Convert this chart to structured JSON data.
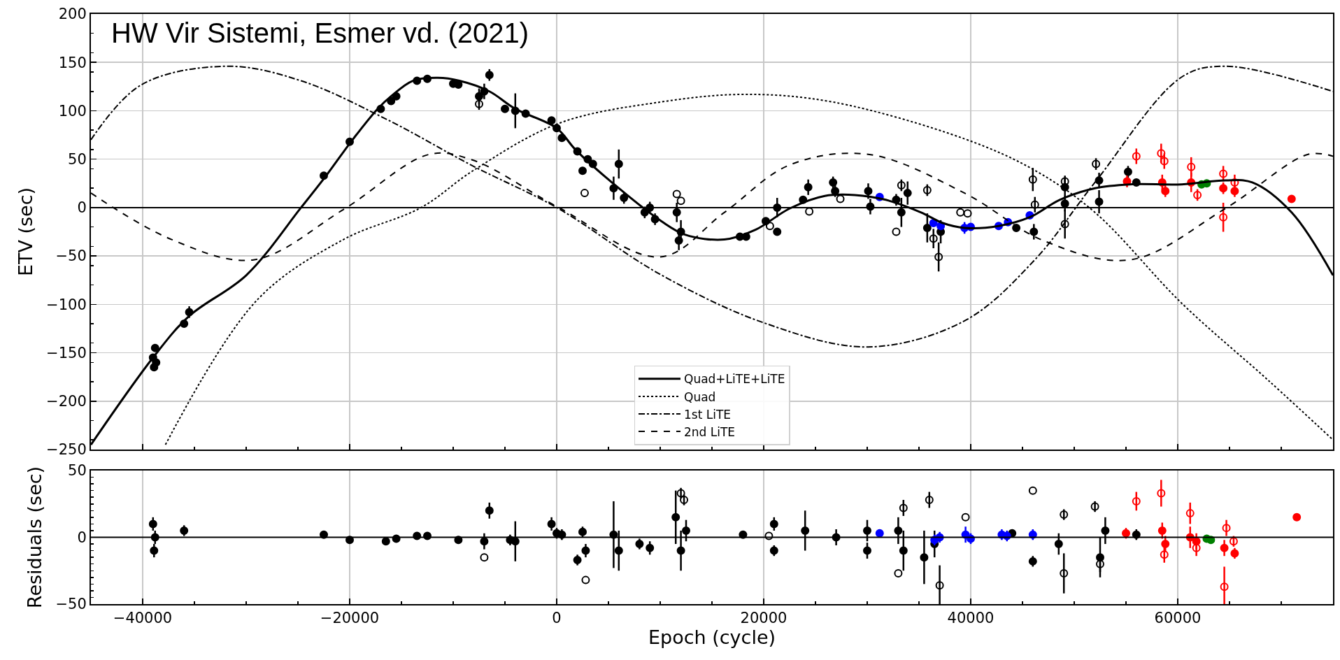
{
  "chart_data": [
    {
      "type": "scatter",
      "title": "HW Vir Sistemi, Esmer vd. (2021)",
      "ylabel": "ETV (sec)",
      "xlim": [
        -45000,
        75000
      ],
      "xticks": [
        -40000,
        -20000,
        0,
        20000,
        40000,
        60000
      ],
      "ylim": [
        -250,
        200
      ],
      "yticks": [
        -250,
        -200,
        -150,
        -100,
        -50,
        0,
        50,
        100,
        150,
        200
      ],
      "grid": true,
      "legend": "bottom",
      "tick_labels": "y",
      "marker": "circle",
      "ref_lines": [
        {
          "axis": "y",
          "value": 0,
          "color": "#000000"
        }
      ],
      "series": [
        {
          "color": "#000000",
          "x": [
            -39000,
            -38900,
            -38800,
            -38700,
            -36000,
            -35500,
            -22500,
            -20000,
            -17000,
            -16000,
            -15500,
            -13500,
            -12500,
            -10000,
            -9500,
            -7500,
            -7000,
            -6500,
            -5000,
            -4000,
            -3000,
            -500,
            0,
            500,
            2000,
            2500,
            3000,
            3500,
            5500,
            6000,
            6500,
            8500,
            9000,
            9500,
            11600,
            11800,
            12000,
            17700,
            18300,
            20200,
            21300,
            21300,
            23800,
            24300,
            26700,
            26900,
            30100,
            30300,
            32800,
            33300,
            33900,
            35800,
            37100,
            44400,
            46100,
            49100,
            49100,
            52400,
            52400,
            55200,
            56000
          ],
          "values": [
            -155,
            -165,
            -145,
            -160,
            -120,
            -108,
            33,
            68,
            102,
            110,
            115,
            131,
            133,
            128,
            127,
            115,
            120,
            137,
            102,
            100,
            97,
            90,
            82,
            72,
            58,
            38,
            50,
            45,
            20,
            45,
            10,
            -5,
            0,
            -12,
            -5,
            -34,
            -25,
            -30,
            -30,
            -14,
            -25,
            0,
            8,
            21,
            26,
            17,
            17,
            1,
            8,
            -5,
            15,
            -21,
            -25,
            -21,
            -25,
            4,
            21,
            28,
            6,
            37,
            26
          ],
          "errors": [
            null,
            null,
            null,
            null,
            null,
            6,
            null,
            null,
            null,
            null,
            null,
            null,
            null,
            null,
            null,
            8,
            8,
            6,
            null,
            18,
            null,
            null,
            null,
            null,
            null,
            null,
            null,
            null,
            12,
            15,
            6,
            6,
            6,
            6,
            10,
            10,
            12,
            null,
            null,
            null,
            null,
            10,
            null,
            8,
            6,
            6,
            8,
            8,
            6,
            15,
            12,
            15,
            12,
            null,
            8,
            8,
            10,
            8,
            12,
            6,
            null
          ]
        },
        {
          "color": "#000000",
          "marker": "circle-open",
          "x": [
            -7500,
            2700,
            11600,
            12000,
            20600,
            24400,
            27400,
            32800,
            33300,
            35800,
            36400,
            36900,
            39000,
            39700,
            46000,
            46200,
            49100,
            49100,
            52100
          ],
          "values": [
            107,
            15,
            14,
            7,
            -19,
            -4,
            9,
            -25,
            23,
            18,
            -32,
            -51,
            -5,
            -6,
            29,
            3,
            -17,
            27,
            45
          ],
          "errors": [
            6,
            null,
            null,
            null,
            null,
            null,
            null,
            null,
            6,
            6,
            10,
            15,
            null,
            null,
            12,
            8,
            15,
            6,
            6
          ]
        },
        {
          "color": "#0000ff",
          "x": [
            31200,
            36400,
            37100,
            39400,
            40000,
            42700,
            43600,
            45700
          ],
          "values": [
            11,
            -16,
            -19,
            -21,
            -20,
            -19,
            -15,
            -8
          ],
          "errors": [
            null,
            null,
            null,
            6,
            null,
            null,
            null,
            null
          ]
        },
        {
          "color": "#ff0000",
          "x": [
            55100,
            58500,
            58800,
            61300,
            64400,
            65500,
            71000
          ],
          "values": [
            27,
            26,
            17,
            26,
            20,
            17,
            9
          ],
          "errors": [
            6,
            8,
            6,
            10,
            6,
            6,
            null
          ]
        },
        {
          "color": "#ff0000",
          "marker": "circle-open",
          "x": [
            56000,
            58400,
            58700,
            61300,
            61900,
            64400,
            64400,
            65500
          ],
          "values": [
            53,
            56,
            48,
            42,
            13,
            35,
            -10,
            26
          ],
          "errors": [
            8,
            10,
            8,
            10,
            6,
            8,
            15,
            8
          ]
        },
        {
          "color": "#008000",
          "x": [
            62300,
            62800
          ],
          "values": [
            24,
            25
          ]
        },
        {
          "type": "line",
          "name": "Quad+LiTE+LiTE",
          "color": "#000000",
          "line_style": "solid",
          "marker": "none",
          "x": [
            -45000,
            -39000,
            -35500,
            -30000,
            -24700,
            -22200,
            -19800,
            -17300,
            -16000,
            -13900,
            -11500,
            -9400,
            -6500,
            -4000,
            0,
            1800,
            6000,
            10100,
            12400,
            16200,
            19200,
            22500,
            25900,
            28800,
            31800,
            35200,
            37300,
            39400,
            42700,
            45700,
            48600,
            52000,
            55400,
            60400,
            64600,
            67200,
            71000,
            75000
          ],
          "values": [
            -245,
            -155,
            -112,
            -70,
            0,
            34,
            69,
            102,
            115,
            131,
            134,
            131,
            120,
            102,
            82,
            60,
            20,
            -14,
            -28,
            -33,
            -23,
            -1,
            12,
            13,
            8,
            -5,
            -16,
            -21,
            -19,
            -10,
            8,
            20,
            24,
            24,
            28,
            26,
            -5,
            -70
          ]
        },
        {
          "type": "line",
          "name": "Quad",
          "color": "#000000",
          "line_style": "dotted",
          "marker": "none",
          "x": [
            -37800,
            -28900,
            -20600,
            -13100,
            -8100,
            200,
            10000,
            18300,
            26700,
            39400,
            46100,
            52000,
            60400,
            68800,
            75000
          ],
          "values": [
            -245,
            -95,
            -33,
            0,
            38,
            87,
            109,
            117,
            109,
            71,
            39,
            -5,
            -99,
            -179,
            -240
          ]
        },
        {
          "type": "line",
          "name": "1st LiTE",
          "color": "#000000",
          "line_style": "dashdot",
          "marker": "none",
          "x": [
            -45000,
            -40100,
            -31800,
            -24700,
            -16400,
            -8100,
            0,
            10000,
            20000,
            30100,
            39400,
            46100,
            52000,
            60400,
            64600,
            75000
          ],
          "values": [
            70,
            127,
            146,
            131,
            91,
            43,
            0,
            -69,
            -119,
            -144,
            -117,
            -55,
            26,
            135,
            146,
            120
          ]
        },
        {
          "type": "line",
          "name": "2nd LiTE",
          "color": "#000000",
          "line_style": "dashed",
          "marker": "none",
          "x": [
            -45000,
            -37200,
            -29300,
            -20600,
            -12300,
            -8100,
            200,
            10000,
            16200,
            22500,
            30100,
            39400,
            47000,
            55400,
            64600,
            72600,
            75000
          ],
          "values": [
            15,
            -33,
            -54,
            -2,
            55,
            49,
            0,
            -51,
            -5,
            44,
            55,
            15,
            -34,
            -54,
            -1,
            55,
            53
          ]
        }
      ]
    },
    {
      "type": "scatter",
      "xlabel": "Epoch (cycle)",
      "ylabel": "Residuals (sec)",
      "xlim": [
        -45000,
        75000
      ],
      "xticks": [
        -40000,
        -20000,
        0,
        20000,
        40000,
        60000
      ],
      "ylim": [
        -50,
        50
      ],
      "yticks": [
        -50,
        0,
        50
      ],
      "grid": true,
      "marker": "circle",
      "ref_lines": [
        {
          "axis": "y",
          "value": 0,
          "color": "#000000"
        }
      ],
      "series": [
        {
          "color": "#000000",
          "x": [
            -39000,
            -38900,
            -38800,
            -36000,
            -22500,
            -20000,
            -16500,
            -15500,
            -13500,
            -12500,
            -9500,
            -7000,
            -6500,
            -4500,
            -4000,
            -500,
            0,
            500,
            2000,
            2500,
            2800,
            5500,
            6000,
            8000,
            9000,
            11500,
            12000,
            12500,
            18000,
            21000,
            21000,
            24000,
            27000,
            30000,
            30000,
            33000,
            33500,
            35500,
            36500,
            44000,
            46000,
            48500,
            52500,
            53000,
            56000
          ],
          "values": [
            10,
            -10,
            0,
            5,
            2,
            -2,
            -3,
            -1,
            1,
            1,
            -2,
            -3,
            20,
            -2,
            -3,
            10,
            3,
            2,
            -17,
            4,
            -10,
            2,
            -10,
            -5,
            -8,
            15,
            -10,
            5,
            2,
            10,
            -10,
            5,
            0,
            5,
            -10,
            5,
            -10,
            -15,
            -5,
            3,
            -18,
            -5,
            -15,
            5,
            2
          ],
          "errors": [
            5,
            5,
            5,
            4,
            null,
            null,
            null,
            null,
            null,
            null,
            null,
            6,
            6,
            4,
            15,
            5,
            4,
            4,
            4,
            4,
            5,
            25,
            15,
            4,
            5,
            20,
            15,
            8,
            null,
            5,
            4,
            15,
            6,
            8,
            6,
            10,
            15,
            20,
            10,
            null,
            4,
            8,
            15,
            10,
            4
          ]
        },
        {
          "color": "#000000",
          "marker": "circle-open",
          "x": [
            -7000,
            2800,
            12000,
            12300,
            20500,
            33000,
            33500,
            36000,
            37000,
            39500,
            46000,
            49000,
            49000,
            52000,
            52500
          ],
          "values": [
            -15,
            -32,
            33,
            28,
            1,
            -27,
            22,
            28,
            -36,
            15,
            35,
            -27,
            17,
            23,
            -20
          ],
          "errors": [
            null,
            null,
            4,
            4,
            null,
            null,
            6,
            6,
            15,
            null,
            null,
            15,
            4,
            4,
            6
          ]
        },
        {
          "color": "#0000ff",
          "x": [
            31200,
            36500,
            37000,
            39500,
            40000,
            43000,
            43500,
            46000
          ],
          "values": [
            3,
            -2,
            0,
            2,
            -1,
            2,
            1,
            2
          ],
          "errors": [
            null,
            4,
            4,
            6,
            4,
            4,
            4,
            4
          ]
        },
        {
          "color": "#ff0000",
          "x": [
            55000,
            58500,
            58800,
            61200,
            61800,
            64500,
            65500,
            71500
          ],
          "values": [
            3,
            5,
            -5,
            0,
            -3,
            -8,
            -12,
            15
          ],
          "errors": [
            4,
            6,
            6,
            8,
            6,
            6,
            4,
            null
          ]
        },
        {
          "color": "#ff0000",
          "marker": "circle-open",
          "x": [
            56000,
            58400,
            58700,
            61200,
            61800,
            64500,
            64700,
            65400
          ],
          "values": [
            27,
            33,
            -13,
            18,
            -8,
            -37,
            7,
            -3
          ],
          "errors": [
            7,
            10,
            6,
            8,
            6,
            15,
            6,
            4
          ]
        },
        {
          "color": "#008000",
          "x": [
            62800,
            63200
          ],
          "values": [
            -1,
            -2
          ]
        }
      ]
    }
  ]
}
